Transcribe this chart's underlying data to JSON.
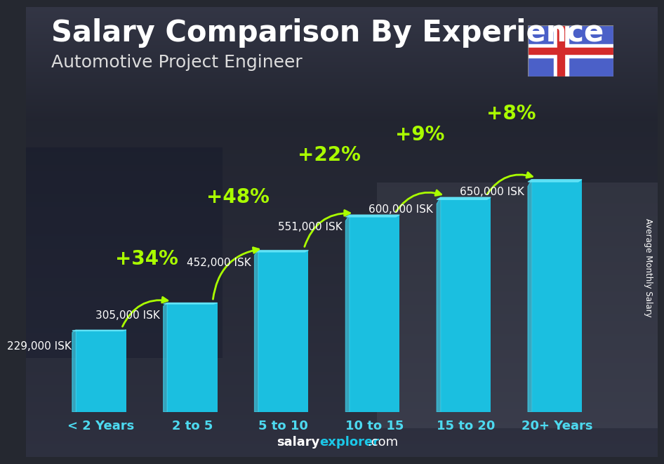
{
  "title": "Salary Comparison By Experience",
  "subtitle": "Automotive Project Engineer",
  "categories": [
    "< 2 Years",
    "2 to 5",
    "5 to 10",
    "10 to 15",
    "15 to 20",
    "20+ Years"
  ],
  "values": [
    229000,
    305000,
    452000,
    551000,
    600000,
    650000
  ],
  "labels": [
    "229,000 ISK",
    "305,000 ISK",
    "452,000 ISK",
    "551,000 ISK",
    "600,000 ISK",
    "650,000 ISK"
  ],
  "pct_changes": [
    "+34%",
    "+48%",
    "+22%",
    "+9%",
    "+8%"
  ],
  "bar_color_main": "#1BC8E8",
  "bar_color_left": "#4DDAF0",
  "bar_color_top": "#6AE6F5",
  "pct_color": "#AAFF00",
  "label_color": "#FFFFFF",
  "title_color": "#FFFFFF",
  "subtitle_color": "#DDDDDD",
  "footer_salary_color": "#FFFFFF",
  "footer_explorer_color": "#1BC8E8",
  "ylabel_text": "Average Monthly Salary",
  "ylim": [
    0,
    780000
  ],
  "title_fontsize": 30,
  "subtitle_fontsize": 18,
  "xtick_fontsize": 13,
  "value_label_fontsize": 11,
  "pct_fontsize": 20,
  "footer_fontsize": 13,
  "bar_width": 0.55,
  "bg_color": "#252830"
}
